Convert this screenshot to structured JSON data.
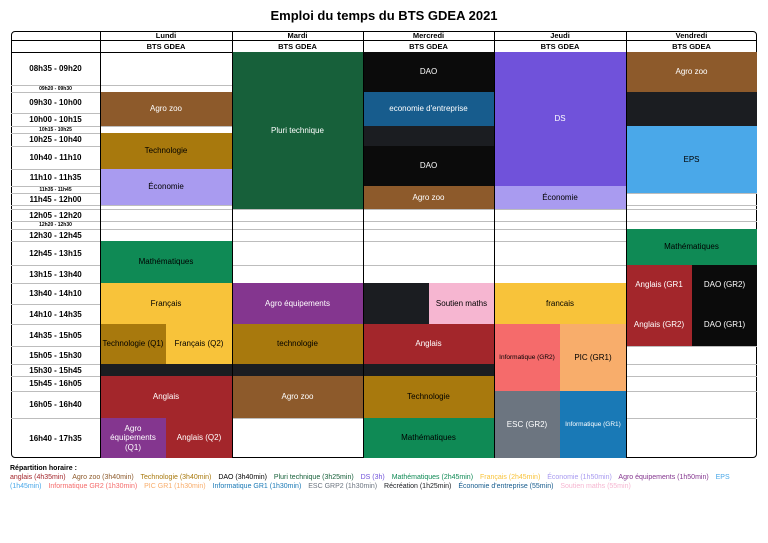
{
  "title": "Emploi du temps du BTS GDEA 2021",
  "days": [
    "Lundi",
    "Mardi",
    "Mercredi",
    "Jeudi",
    "Vendredi"
  ],
  "class_name": "BTS GDEA",
  "time_slots": [
    {
      "label": "08h35 - 09h20",
      "small": false
    },
    {
      "label": "09h20 - 09h30",
      "small": true
    },
    {
      "label": "09h30 - 10h00",
      "small": false
    },
    {
      "label": "10h00 - 10h15",
      "small": false
    },
    {
      "label": "10h15 - 10h25",
      "small": true
    },
    {
      "label": "10h25 - 10h40",
      "small": false
    },
    {
      "label": "10h40 - 11h10",
      "small": false
    },
    {
      "label": "11h10 - 11h35",
      "small": false
    },
    {
      "label": "11h35 - 11h45",
      "small": true
    },
    {
      "label": "11h45 - 12h00",
      "small": false
    },
    {
      "label": "",
      "small": true
    },
    {
      "label": "12h05 - 12h20",
      "small": false
    },
    {
      "label": "12h20 - 12h30",
      "small": true
    },
    {
      "label": "12h30 - 12h45",
      "small": false
    },
    {
      "label": "12h45 - 13h15",
      "small": false
    },
    {
      "label": "13h15 - 13h40",
      "small": false
    },
    {
      "label": "13h40 - 14h10",
      "small": false
    },
    {
      "label": "14h10 - 14h35",
      "small": false
    },
    {
      "label": "14h35 - 15h05",
      "small": false
    },
    {
      "label": "15h05 - 15h30",
      "small": false
    },
    {
      "label": "15h30 - 15h45",
      "small": false
    },
    {
      "label": "15h45 - 16h05",
      "small": false
    },
    {
      "label": "16h05 - 16h40",
      "small": false
    },
    {
      "label": "16h40 - 17h35",
      "small": false
    }
  ],
  "events": [
    {
      "day": 0,
      "s": 2,
      "e": 4,
      "label": "Agro zoo",
      "bg": "#8d5a2b",
      "fg": "#ffffff"
    },
    {
      "day": 0,
      "s": 5,
      "e": 7,
      "label": "Technologie",
      "bg": "#a8790d",
      "fg": "#000000"
    },
    {
      "day": 0,
      "s": 7,
      "e": 10,
      "label": "Économie",
      "bg": "#a99bf0",
      "fg": "#000000"
    },
    {
      "day": 0,
      "s": 14,
      "e": 16,
      "label": "Mathématiques",
      "bg": "#0f8a55",
      "fg": "#000000"
    },
    {
      "day": 0,
      "s": 16,
      "e": 18,
      "label": "Français",
      "bg": "#f8c33a",
      "fg": "#000000"
    },
    {
      "day": 0,
      "s": 18,
      "e": 20,
      "half": 0,
      "label": "Technologie (Q1)",
      "bg": "#a8790d",
      "fg": "#000000"
    },
    {
      "day": 0,
      "s": 18,
      "e": 20,
      "half": 1,
      "label": "Français (Q2)",
      "bg": "#f8c33a",
      "fg": "#000000"
    },
    {
      "day": 0,
      "s": 20,
      "e": 21,
      "label": "",
      "bg": "#1b1d21",
      "fg": "#ffffff"
    },
    {
      "day": 0,
      "s": 21,
      "e": 23,
      "label": "Anglais",
      "bg": "#a3262b",
      "fg": "#ffffff"
    },
    {
      "day": 0,
      "s": 23,
      "e": 24,
      "half": 0,
      "label": "Agro équipements (Q1)",
      "bg": "#84368f",
      "fg": "#ffffff"
    },
    {
      "day": 0,
      "s": 23,
      "e": 24,
      "half": 1,
      "label": "Anglais (Q2)",
      "bg": "#a3262b",
      "fg": "#ffffff"
    },
    {
      "day": 1,
      "s": 0,
      "e": 11,
      "label": "Pluri technique",
      "bg": "#17603a",
      "fg": "#ffffff"
    },
    {
      "day": 1,
      "s": 16,
      "e": 18,
      "label": "Agro équipements",
      "bg": "#84368f",
      "fg": "#ffffff"
    },
    {
      "day": 1,
      "s": 18,
      "e": 20,
      "label": "technologie",
      "bg": "#a8790d",
      "fg": "#000000"
    },
    {
      "day": 1,
      "s": 20,
      "e": 21,
      "label": "",
      "bg": "#1b1d21",
      "fg": "#ffffff"
    },
    {
      "day": 1,
      "s": 21,
      "e": 23,
      "label": "Agro zoo",
      "bg": "#8d5a2b",
      "fg": "#ffffff"
    },
    {
      "day": 2,
      "s": 0,
      "e": 2,
      "label": "DAO",
      "bg": "#0b0b0b",
      "fg": "#ffffff"
    },
    {
      "day": 2,
      "s": 2,
      "e": 4,
      "label": "economie d'entreprise",
      "bg": "#175c8d",
      "fg": "#ffffff"
    },
    {
      "day": 2,
      "s": 4,
      "e": 6,
      "label": "",
      "bg": "#1b1d21",
      "fg": "#ffffff"
    },
    {
      "day": 2,
      "s": 6,
      "e": 8,
      "label": "DAO",
      "bg": "#0b0b0b",
      "fg": "#ffffff"
    },
    {
      "day": 2,
      "s": 8,
      "e": 11,
      "label": "Agro zoo",
      "bg": "#8d5a2b",
      "fg": "#ffffff"
    },
    {
      "day": 2,
      "s": 16,
      "e": 18,
      "half": 0,
      "label": "",
      "bg": "#1b1d21",
      "fg": "#ffffff"
    },
    {
      "day": 2,
      "s": 16,
      "e": 18,
      "half": 1,
      "label": "Soutien maths",
      "bg": "#f6b6d1",
      "fg": "#000000"
    },
    {
      "day": 2,
      "s": 18,
      "e": 20,
      "label": "Anglais",
      "bg": "#a3262b",
      "fg": "#ffffff"
    },
    {
      "day": 2,
      "s": 20,
      "e": 21,
      "label": "",
      "bg": "#1b1d21",
      "fg": "#ffffff"
    },
    {
      "day": 2,
      "s": 21,
      "e": 23,
      "label": "Technologie",
      "bg": "#a8790d",
      "fg": "#000000"
    },
    {
      "day": 2,
      "s": 23,
      "e": 24,
      "label": "Mathématiques",
      "bg": "#0f8a55",
      "fg": "#000000"
    },
    {
      "day": 3,
      "s": 0,
      "e": 8,
      "label": "DS",
      "bg": "#7052da",
      "fg": "#ffffff"
    },
    {
      "day": 3,
      "s": 8,
      "e": 11,
      "label": "Économie",
      "bg": "#a99bf0",
      "fg": "#000000"
    },
    {
      "day": 3,
      "s": 16,
      "e": 18,
      "label": "francais",
      "bg": "#f8c33a",
      "fg": "#000000"
    },
    {
      "day": 3,
      "s": 18,
      "e": 22,
      "half": 0,
      "label": "Informatique (GR2)",
      "bg": "#f56b6b",
      "fg": "#000000",
      "small": true
    },
    {
      "day": 3,
      "s": 18,
      "e": 22,
      "half": 1,
      "label": "PIC (GR1)",
      "bg": "#f8ad6b",
      "fg": "#000000"
    },
    {
      "day": 3,
      "s": 22,
      "e": 24,
      "half": 0,
      "label": "ESC (GR2)",
      "bg": "#6c7580",
      "fg": "#ffffff"
    },
    {
      "day": 3,
      "s": 22,
      "e": 24,
      "half": 1,
      "label": "Informatique (GR1)",
      "bg": "#1979b6",
      "fg": "#ffffff",
      "small": true
    },
    {
      "day": 4,
      "s": 0,
      "e": 2,
      "label": "Agro zoo",
      "bg": "#8d5a2b",
      "fg": "#ffffff"
    },
    {
      "day": 4,
      "s": 2,
      "e": 4,
      "label": "",
      "bg": "#1b1d21",
      "fg": "#ffffff"
    },
    {
      "day": 4,
      "s": 4,
      "e": 9,
      "label": "EPS",
      "bg": "#4aa8e9",
      "fg": "#000000"
    },
    {
      "day": 4,
      "s": 13,
      "e": 15,
      "label": "Mathématiques",
      "bg": "#0f8a55",
      "fg": "#000000"
    },
    {
      "day": 4,
      "s": 15,
      "e": 17,
      "half": 0,
      "label": "Anglais (GR1",
      "bg": "#a3262b",
      "fg": "#ffffff"
    },
    {
      "day": 4,
      "s": 15,
      "e": 17,
      "half": 1,
      "label": "DAO (GR2)",
      "bg": "#0b0b0b",
      "fg": "#ffffff"
    },
    {
      "day": 4,
      "s": 17,
      "e": 19,
      "half": 0,
      "label": "Anglais (GR2)",
      "bg": "#a3262b",
      "fg": "#ffffff"
    },
    {
      "day": 4,
      "s": 17,
      "e": 19,
      "half": 1,
      "label": "DAO (GR1)",
      "bg": "#0b0b0b",
      "fg": "#ffffff"
    }
  ],
  "legend": {
    "title": "Répartition horaire :",
    "items": [
      {
        "text": "anglais (4h35min)",
        "color": "#a3262b"
      },
      {
        "text": "Agro zoo (3h40min)",
        "color": "#8d5a2b"
      },
      {
        "text": "Technologie (3h40min)",
        "color": "#a8790d"
      },
      {
        "text": "DAO (3h40min)",
        "color": "#000000"
      },
      {
        "text": "Pluri technique (3h25min)",
        "color": "#17603a"
      },
      {
        "text": "DS (3h)",
        "color": "#7052da"
      },
      {
        "text": "Mathématiques (2h45min)",
        "color": "#0f8a55"
      },
      {
        "text": "Français (2h45min)",
        "color": "#f8c33a"
      },
      {
        "text": "Économie (1h50min)",
        "color": "#a99bf0"
      },
      {
        "text": "Agro équipements (1h50min)",
        "color": "#84368f"
      },
      {
        "text": "EPS (1h45min)",
        "color": "#4aa8e9"
      },
      {
        "text": "Informatique GR2 (1h30min)",
        "color": "#f56b6b"
      },
      {
        "text": "PIC GR1 (1h30min)",
        "color": "#f8ad6b"
      },
      {
        "text": "Informatique GR1 (1h30min)",
        "color": "#1979b6"
      },
      {
        "text": "ESC GRP2 (1h30min)",
        "color": "#6c7580"
      },
      {
        "text": "Récréation (1h25min)",
        "color": "#1b1d21"
      },
      {
        "text": "Économie d'entreprise (55min)",
        "color": "#175c8d"
      },
      {
        "text": "Soutien maths (55min)",
        "color": "#f6b6d1"
      }
    ]
  }
}
